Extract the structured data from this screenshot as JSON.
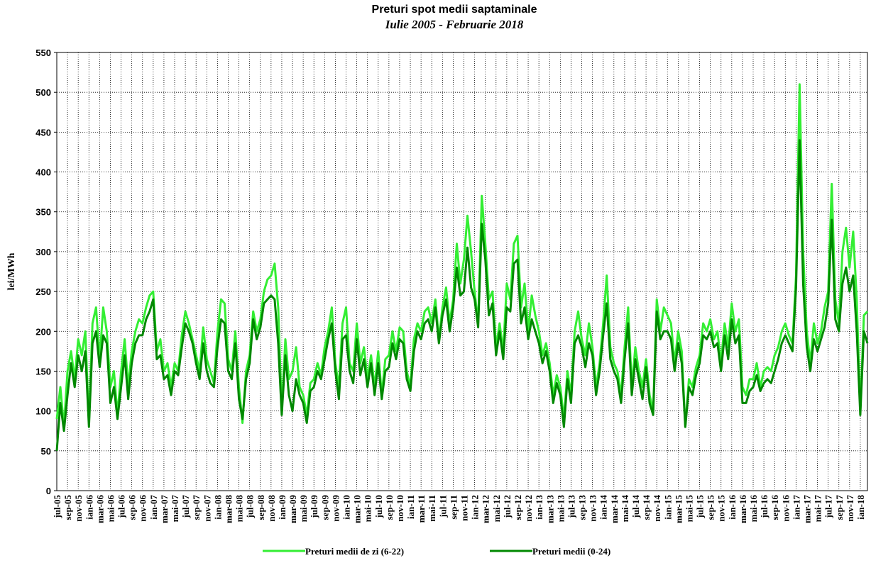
{
  "chart_data": {
    "type": "line",
    "title": "Preturi spot medii saptaminale",
    "subtitle": "Iulie 2005 - Februarie 2018",
    "y_label": "lei/MWh",
    "ylim": [
      0,
      550
    ],
    "yticks": [
      0,
      50,
      100,
      150,
      200,
      250,
      300,
      350,
      400,
      450,
      500,
      550
    ],
    "grid": true,
    "legend": "bottom",
    "categories": [
      "jul-05",
      null,
      null,
      "sep-05",
      null,
      null,
      "nov-05",
      null,
      null,
      "ian-06",
      null,
      null,
      "mar-06",
      null,
      null,
      "mai-06",
      null,
      null,
      "jul-06",
      null,
      null,
      "sep-06",
      null,
      null,
      "nov-06",
      null,
      null,
      "ian-07",
      null,
      null,
      "mar-07",
      null,
      null,
      "mai-07",
      null,
      null,
      "jul-07",
      null,
      null,
      "sep-07",
      null,
      null,
      "nov-07",
      null,
      null,
      "ian-08",
      null,
      null,
      "mar-08",
      null,
      null,
      "mai-08",
      null,
      null,
      "jul-08",
      null,
      null,
      "sep-08",
      null,
      null,
      "nov-08",
      null,
      null,
      "ian-09",
      null,
      null,
      "mar-09",
      null,
      null,
      "mai-09",
      null,
      null,
      "jul-09",
      null,
      null,
      "sep-09",
      null,
      null,
      "nov-09",
      null,
      null,
      "ian-10",
      null,
      null,
      "mar-10",
      null,
      null,
      "mai-10",
      null,
      null,
      "jul-10",
      null,
      null,
      "sep-10",
      null,
      null,
      "nov-10",
      null,
      null,
      "ian-11",
      null,
      null,
      "mar-11",
      null,
      null,
      "mai-11",
      null,
      null,
      "jul-11",
      null,
      null,
      "sep-11",
      null,
      null,
      "nov-11",
      null,
      null,
      "ian-12",
      null,
      null,
      "mar-12",
      null,
      null,
      "mai-12",
      null,
      null,
      "jul-12",
      null,
      null,
      "sep-12",
      null,
      null,
      "nov-12",
      null,
      null,
      "ian-13",
      null,
      null,
      "mar-13",
      null,
      null,
      "mai-13",
      null,
      null,
      "jul-13",
      null,
      null,
      "sep-13",
      null,
      null,
      "nov-13",
      null,
      null,
      "ian-14",
      null,
      null,
      "mar-14",
      null,
      null,
      "mai-14",
      null,
      null,
      "jul-14",
      null,
      null,
      "sep-14",
      null,
      null,
      "nov-14",
      null,
      null,
      "ian-15",
      null,
      null,
      "mar-15",
      null,
      null,
      "mai-15",
      null,
      null,
      "jul-15",
      null,
      null,
      "sep-15",
      null,
      null,
      "nov-15",
      null,
      null,
      "ian-16",
      null,
      null,
      "mar-16",
      null,
      null,
      "mai-16",
      null,
      null,
      "jul-16",
      null,
      null,
      "sep-16",
      null,
      null,
      "nov-16",
      null,
      null,
      "ian-17",
      null,
      null,
      "mar-17",
      null,
      null,
      "mai-17",
      null,
      null,
      "jul-17",
      null,
      null,
      "sep-17",
      null,
      null,
      "nov-17",
      null,
      null,
      "ian-18",
      null,
      null
    ],
    "series": [
      {
        "name": "Preturi medii de zi (6-22)",
        "color": "#33ee33",
        "values": [
          90,
          130,
          80,
          150,
          175,
          140,
          190,
          170,
          200,
          85,
          210,
          230,
          165,
          230,
          200,
          130,
          150,
          95,
          150,
          190,
          130,
          175,
          200,
          215,
          210,
          230,
          245,
          250,
          175,
          190,
          150,
          160,
          130,
          160,
          150,
          195,
          225,
          210,
          190,
          170,
          150,
          205,
          165,
          150,
          135,
          200,
          240,
          235,
          165,
          150,
          200,
          130,
          85,
          150,
          170,
          225,
          200,
          215,
          250,
          265,
          270,
          285,
          230,
          100,
          190,
          140,
          150,
          180,
          130,
          120,
          95,
          135,
          140,
          160,
          145,
          180,
          200,
          230,
          160,
          130,
          210,
          230,
          160,
          150,
          210,
          160,
          180,
          140,
          170,
          130,
          175,
          120,
          165,
          170,
          200,
          175,
          205,
          200,
          150,
          130,
          190,
          210,
          200,
          225,
          230,
          210,
          240,
          190,
          230,
          255,
          210,
          240,
          310,
          260,
          290,
          345,
          300,
          250,
          210,
          370,
          310,
          240,
          250,
          180,
          210,
          175,
          260,
          240,
          310,
          320,
          230,
          260,
          200,
          245,
          220,
          200,
          170,
          185,
          160,
          120,
          145,
          130,
          90,
          150,
          120,
          200,
          225,
          190,
          170,
          210,
          180,
          130,
          160,
          210,
          270,
          180,
          160,
          150,
          120,
          180,
          230,
          130,
          180,
          150,
          130,
          165,
          120,
          100,
          240,
          200,
          230,
          220,
          210,
          160,
          200,
          175,
          80,
          140,
          130,
          155,
          170,
          210,
          200,
          215,
          190,
          200,
          160,
          210,
          180,
          235,
          200,
          215,
          130,
          120,
          140,
          140,
          160,
          130,
          150,
          155,
          150,
          170,
          180,
          200,
          210,
          195,
          185,
          270,
          510,
          300,
          200,
          160,
          210,
          185,
          200,
          230,
          250,
          385,
          240,
          210,
          300,
          330,
          280,
          325,
          240,
          100,
          220,
          225
        ]
      },
      {
        "name": "Preturi medii (0-24)",
        "color": "#008800",
        "values": [
          50,
          110,
          75,
          120,
          160,
          130,
          170,
          150,
          175,
          80,
          185,
          200,
          155,
          195,
          185,
          110,
          130,
          90,
          130,
          170,
          115,
          160,
          185,
          195,
          195,
          215,
          225,
          240,
          165,
          170,
          140,
          145,
          120,
          150,
          145,
          180,
          210,
          200,
          185,
          160,
          140,
          185,
          150,
          135,
          130,
          180,
          215,
          210,
          150,
          140,
          185,
          115,
          90,
          140,
          160,
          215,
          190,
          205,
          235,
          240,
          245,
          240,
          185,
          95,
          170,
          120,
          100,
          140,
          120,
          110,
          85,
          125,
          130,
          150,
          140,
          165,
          190,
          210,
          150,
          115,
          190,
          195,
          150,
          135,
          190,
          145,
          165,
          130,
          160,
          120,
          160,
          115,
          150,
          155,
          185,
          165,
          190,
          185,
          140,
          125,
          175,
          200,
          190,
          210,
          215,
          200,
          230,
          185,
          220,
          240,
          200,
          230,
          280,
          245,
          250,
          305,
          255,
          240,
          205,
          335,
          290,
          220,
          235,
          170,
          200,
          165,
          230,
          225,
          285,
          290,
          210,
          230,
          190,
          215,
          200,
          185,
          160,
          175,
          150,
          110,
          135,
          120,
          80,
          140,
          110,
          185,
          195,
          180,
          155,
          185,
          170,
          120,
          150,
          195,
          235,
          165,
          150,
          140,
          110,
          165,
          210,
          120,
          165,
          140,
          115,
          155,
          110,
          95,
          225,
          190,
          200,
          200,
          190,
          150,
          185,
          160,
          80,
          130,
          120,
          145,
          160,
          195,
          190,
          200,
          180,
          185,
          150,
          195,
          165,
          215,
          185,
          195,
          110,
          110,
          125,
          130,
          145,
          125,
          135,
          140,
          135,
          150,
          165,
          185,
          195,
          185,
          175,
          255,
          440,
          260,
          180,
          150,
          190,
          175,
          190,
          205,
          235,
          340,
          215,
          200,
          260,
          280,
          250,
          270,
          200,
          95,
          200,
          185
        ]
      }
    ]
  }
}
